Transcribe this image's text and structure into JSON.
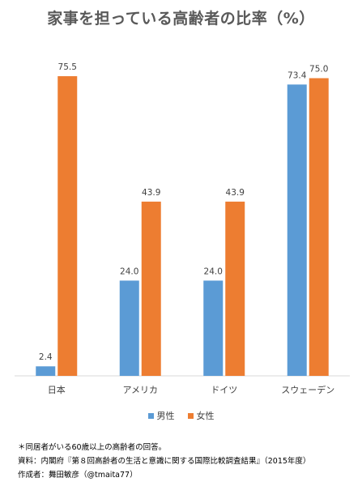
{
  "chart_data": {
    "type": "bar",
    "title": "家事を担っている高齢者の比率（%）",
    "categories": [
      "日本",
      "アメリカ",
      "ドイツ",
      "スウェーデン"
    ],
    "series": [
      {
        "name": "男性",
        "values": [
          2.4,
          24.0,
          24.0,
          73.4
        ],
        "labels": [
          "2.4",
          "24.0",
          "24.0",
          "73.4"
        ],
        "color": "#5B9BD5"
      },
      {
        "name": "女性",
        "values": [
          75.5,
          43.9,
          43.9,
          75.0
        ],
        "labels": [
          "75.5",
          "43.9",
          "43.9",
          "75.0"
        ],
        "color": "#ED7D31"
      }
    ],
    "ylim": [
      0,
      80
    ],
    "grid": false,
    "legend": "bottom",
    "axis_color": "#D9D9D9"
  },
  "notes": [
    "＊同居者がいる60歳以上の高齢者の回答。",
    "資料：内閣府『第８回高齢者の生活と意識に関する国際比較調査結果』（2015年度）",
    "作成者：舞田敏彦（@tmaita77）"
  ]
}
